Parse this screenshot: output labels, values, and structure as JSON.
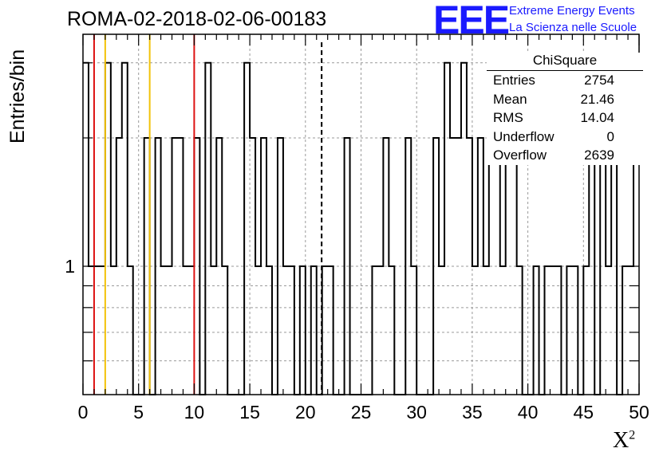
{
  "title": "ROMA-02-2018-02-06-00183",
  "logo": {
    "text": "EEE",
    "line1": "Extreme Energy Events",
    "line2": "La Scienza nelle Scuole",
    "color": "#1a1aff"
  },
  "stats_box": {
    "title": "ChiSquare",
    "rows": [
      {
        "label": "Entries",
        "value": "2754"
      },
      {
        "label": "Mean",
        "value": "21.46"
      },
      {
        "label": "RMS",
        "value": "14.04"
      },
      {
        "label": "Underflow",
        "value": "0"
      },
      {
        "label": "Overflow",
        "value": "2639"
      }
    ]
  },
  "chart_data": {
    "type": "histogram",
    "ylabel": "Entries/bin",
    "xlabel": "X",
    "xlabel_superscript": "2",
    "xlim": [
      0,
      50
    ],
    "ylim": [
      0.5,
      3.5
    ],
    "log_y": true,
    "grid": true,
    "xticks": [
      0,
      5,
      10,
      15,
      20,
      25,
      30,
      35,
      40,
      45,
      50
    ],
    "ytick_labels": [
      {
        "value": 1,
        "label": "1"
      }
    ],
    "bin_width": 0.5,
    "bin_values": [
      3,
      1,
      1,
      1,
      3,
      1,
      2,
      3,
      1,
      0,
      0,
      2,
      0,
      2,
      1,
      1,
      2,
      2,
      1,
      1,
      2,
      0,
      3,
      1,
      2,
      1,
      0,
      0,
      0,
      3,
      2,
      1,
      2,
      1,
      0,
      2,
      1,
      1,
      0,
      1,
      0,
      1,
      0,
      1,
      1,
      0,
      0,
      2,
      0,
      0,
      0,
      0,
      1,
      1,
      2,
      1,
      0,
      0,
      2,
      1,
      0,
      0,
      0,
      2,
      1,
      3,
      2,
      2,
      3,
      2,
      1,
      2,
      1,
      2,
      2,
      1,
      2,
      2,
      1,
      0,
      0,
      1,
      0,
      1,
      1,
      1,
      0,
      1,
      1,
      0,
      1,
      3,
      0,
      2,
      1,
      2,
      0,
      1,
      1,
      2
    ],
    "vertical_lines": [
      {
        "x": 1,
        "color": "#dd1111",
        "style": "solid"
      },
      {
        "x": 2,
        "color": "#f2c20a",
        "style": "solid"
      },
      {
        "x": 6,
        "color": "#f2c20a",
        "style": "solid"
      },
      {
        "x": 10,
        "color": "#dd1111",
        "style": "solid"
      },
      {
        "x": 21.46,
        "color": "#000000",
        "style": "dashed"
      }
    ]
  }
}
